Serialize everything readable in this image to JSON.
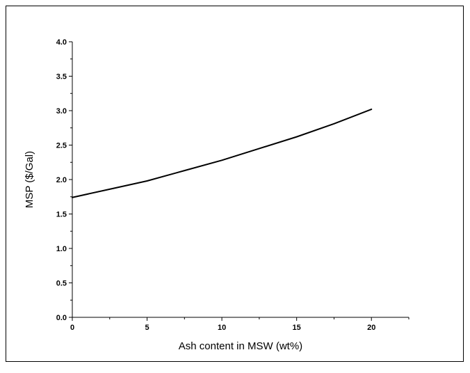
{
  "chart_data": {
    "type": "line",
    "title": "",
    "xlabel": "Ash content in MSW (wt%)",
    "ylabel": "MSP ($/Gal)",
    "xlim": [
      0,
      22.5
    ],
    "ylim": [
      0,
      4.0
    ],
    "x_ticks": [
      {
        "value": 0,
        "label": "0"
      },
      {
        "value": 5,
        "label": "5"
      },
      {
        "value": 10,
        "label": "10"
      },
      {
        "value": 15,
        "label": "15"
      },
      {
        "value": 20,
        "label": "20"
      }
    ],
    "y_ticks": [
      {
        "value": 0.0,
        "label": "0.0"
      },
      {
        "value": 0.5,
        "label": "0.5"
      },
      {
        "value": 1.0,
        "label": "1.0"
      },
      {
        "value": 1.5,
        "label": "1.5"
      },
      {
        "value": 2.0,
        "label": "2.0"
      },
      {
        "value": 2.5,
        "label": "2.5"
      },
      {
        "value": 3.0,
        "label": "3.0"
      },
      {
        "value": 3.5,
        "label": "3.5"
      },
      {
        "value": 4.0,
        "label": "4.0"
      }
    ],
    "grid": false,
    "legend": "none",
    "series": [
      {
        "color": "#000000",
        "x": [
          0,
          2.5,
          5,
          7.5,
          10,
          12.5,
          15,
          17.5,
          20
        ],
        "y": [
          1.74,
          1.86,
          1.98,
          2.13,
          2.28,
          2.45,
          2.62,
          2.81,
          3.02
        ]
      }
    ]
  }
}
